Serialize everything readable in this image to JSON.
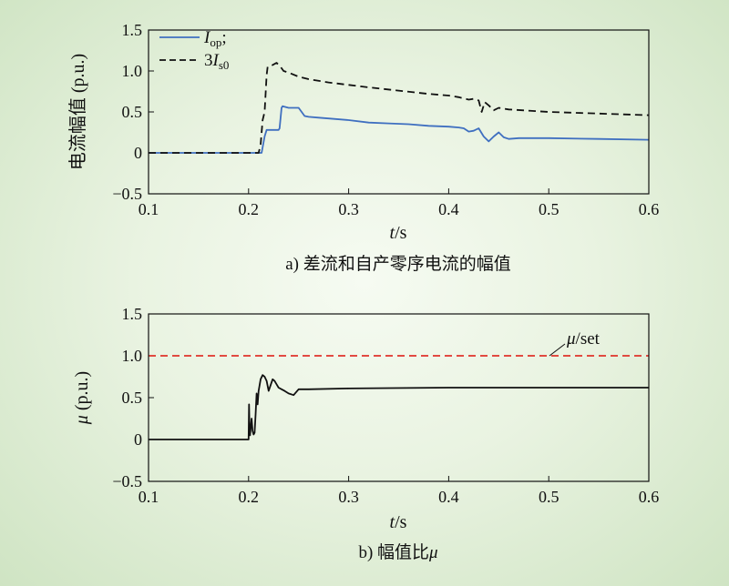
{
  "chart_data": [
    {
      "type": "line",
      "caption": "a) 差流和自产零序电流的幅值",
      "xlabel": {
        "italic": "t",
        "rest": "/s"
      },
      "ylabel": "电流幅值 (p.u.)",
      "xlim": [
        0.1,
        0.6
      ],
      "ylim": [
        -0.5,
        1.5
      ],
      "xticks": [
        0.1,
        0.2,
        0.3,
        0.4,
        0.5,
        0.6
      ],
      "xtick_labels": [
        "0.1",
        "0.2",
        "0.3",
        "0.4",
        "0.5",
        "0.6"
      ],
      "yticks": [
        -0.5,
        0,
        0.5,
        1.0,
        1.5
      ],
      "ytick_labels": [
        "−0.5",
        "0",
        "0.5",
        "1.0",
        "1.5"
      ],
      "grid": false,
      "legend_position": "top-left",
      "series": [
        {
          "legend": {
            "main": "I",
            "sub": "op",
            "suffix": ";"
          },
          "color": "#3f6fc0",
          "dash": "solid",
          "x": [
            0.1,
            0.213,
            0.216,
            0.218,
            0.23,
            0.231,
            0.233,
            0.234,
            0.24,
            0.245,
            0.25,
            0.253,
            0.256,
            0.26,
            0.27,
            0.28,
            0.3,
            0.32,
            0.34,
            0.36,
            0.38,
            0.4,
            0.41,
            0.415,
            0.42,
            0.425,
            0.43,
            0.435,
            0.44,
            0.445,
            0.45,
            0.455,
            0.46,
            0.47,
            0.5,
            0.55,
            0.6
          ],
          "y": [
            0,
            0,
            0.2,
            0.28,
            0.28,
            0.3,
            0.55,
            0.57,
            0.55,
            0.55,
            0.55,
            0.5,
            0.45,
            0.44,
            0.43,
            0.42,
            0.4,
            0.37,
            0.36,
            0.35,
            0.33,
            0.32,
            0.31,
            0.3,
            0.26,
            0.27,
            0.3,
            0.2,
            0.14,
            0.2,
            0.25,
            0.19,
            0.17,
            0.18,
            0.18,
            0.17,
            0.16
          ]
        },
        {
          "legend": {
            "prefix": "3",
            "main": "I",
            "sub": "s0",
            "suffix": ""
          },
          "color": "#111111",
          "dash": "dashed",
          "x": [
            0.1,
            0.21,
            0.212,
            0.214,
            0.216,
            0.218,
            0.219,
            0.222,
            0.225,
            0.228,
            0.232,
            0.235,
            0.24,
            0.25,
            0.26,
            0.28,
            0.3,
            0.32,
            0.35,
            0.38,
            0.4,
            0.41,
            0.42,
            0.425,
            0.43,
            0.433,
            0.436,
            0.44,
            0.445,
            0.45,
            0.46,
            0.5,
            0.55,
            0.6
          ],
          "y": [
            0,
            0,
            0.1,
            0.4,
            0.5,
            0.95,
            1.05,
            1.06,
            1.08,
            1.1,
            1.05,
            1.0,
            0.98,
            0.93,
            0.9,
            0.86,
            0.83,
            0.8,
            0.76,
            0.72,
            0.7,
            0.68,
            0.65,
            0.66,
            0.64,
            0.5,
            0.62,
            0.58,
            0.52,
            0.55,
            0.53,
            0.5,
            0.48,
            0.46
          ]
        }
      ]
    },
    {
      "type": "line",
      "caption": "b) 幅值比",
      "caption_italic": "μ",
      "xlabel": {
        "italic": "t",
        "rest": "/s"
      },
      "ylabel": {
        "italic": "μ",
        "rest": " (p.u.)"
      },
      "xlim": [
        0.1,
        0.6
      ],
      "ylim": [
        -0.5,
        1.5
      ],
      "xticks": [
        0.1,
        0.2,
        0.3,
        0.4,
        0.5,
        0.6
      ],
      "xtick_labels": [
        "0.1",
        "0.2",
        "0.3",
        "0.4",
        "0.5",
        "0.6"
      ],
      "yticks": [
        -0.5,
        0,
        0.5,
        1.0,
        1.5
      ],
      "ytick_labels": [
        "−0.5",
        "0",
        "0.5",
        "1.0",
        "1.5"
      ],
      "grid": false,
      "series": [
        {
          "color": "#111111",
          "dash": "solid",
          "x": [
            0.1,
            0.2,
            0.2005,
            0.201,
            0.2015,
            0.203,
            0.204,
            0.205,
            0.206,
            0.207,
            0.208,
            0.209,
            0.21,
            0.212,
            0.214,
            0.216,
            0.218,
            0.22,
            0.222,
            0.224,
            0.226,
            0.228,
            0.23,
            0.233,
            0.236,
            0.24,
            0.245,
            0.25,
            0.26,
            0.3,
            0.4,
            0.5,
            0.6
          ],
          "y": [
            0,
            0,
            0.42,
            0.1,
            0.05,
            0.25,
            0.1,
            0.06,
            0.08,
            0.3,
            0.55,
            0.42,
            0.58,
            0.72,
            0.77,
            0.75,
            0.7,
            0.58,
            0.65,
            0.72,
            0.7,
            0.66,
            0.62,
            0.6,
            0.58,
            0.55,
            0.53,
            0.6,
            0.6,
            0.61,
            0.62,
            0.62,
            0.62
          ]
        },
        {
          "color": "#e0322a",
          "dash": "dashed",
          "x": [
            0.1,
            0.6
          ],
          "y": [
            1.0,
            1.0
          ]
        }
      ],
      "annotation": {
        "italic": "μ",
        "rest": "/set",
        "x": 0.5,
        "y": 1.0
      }
    }
  ]
}
